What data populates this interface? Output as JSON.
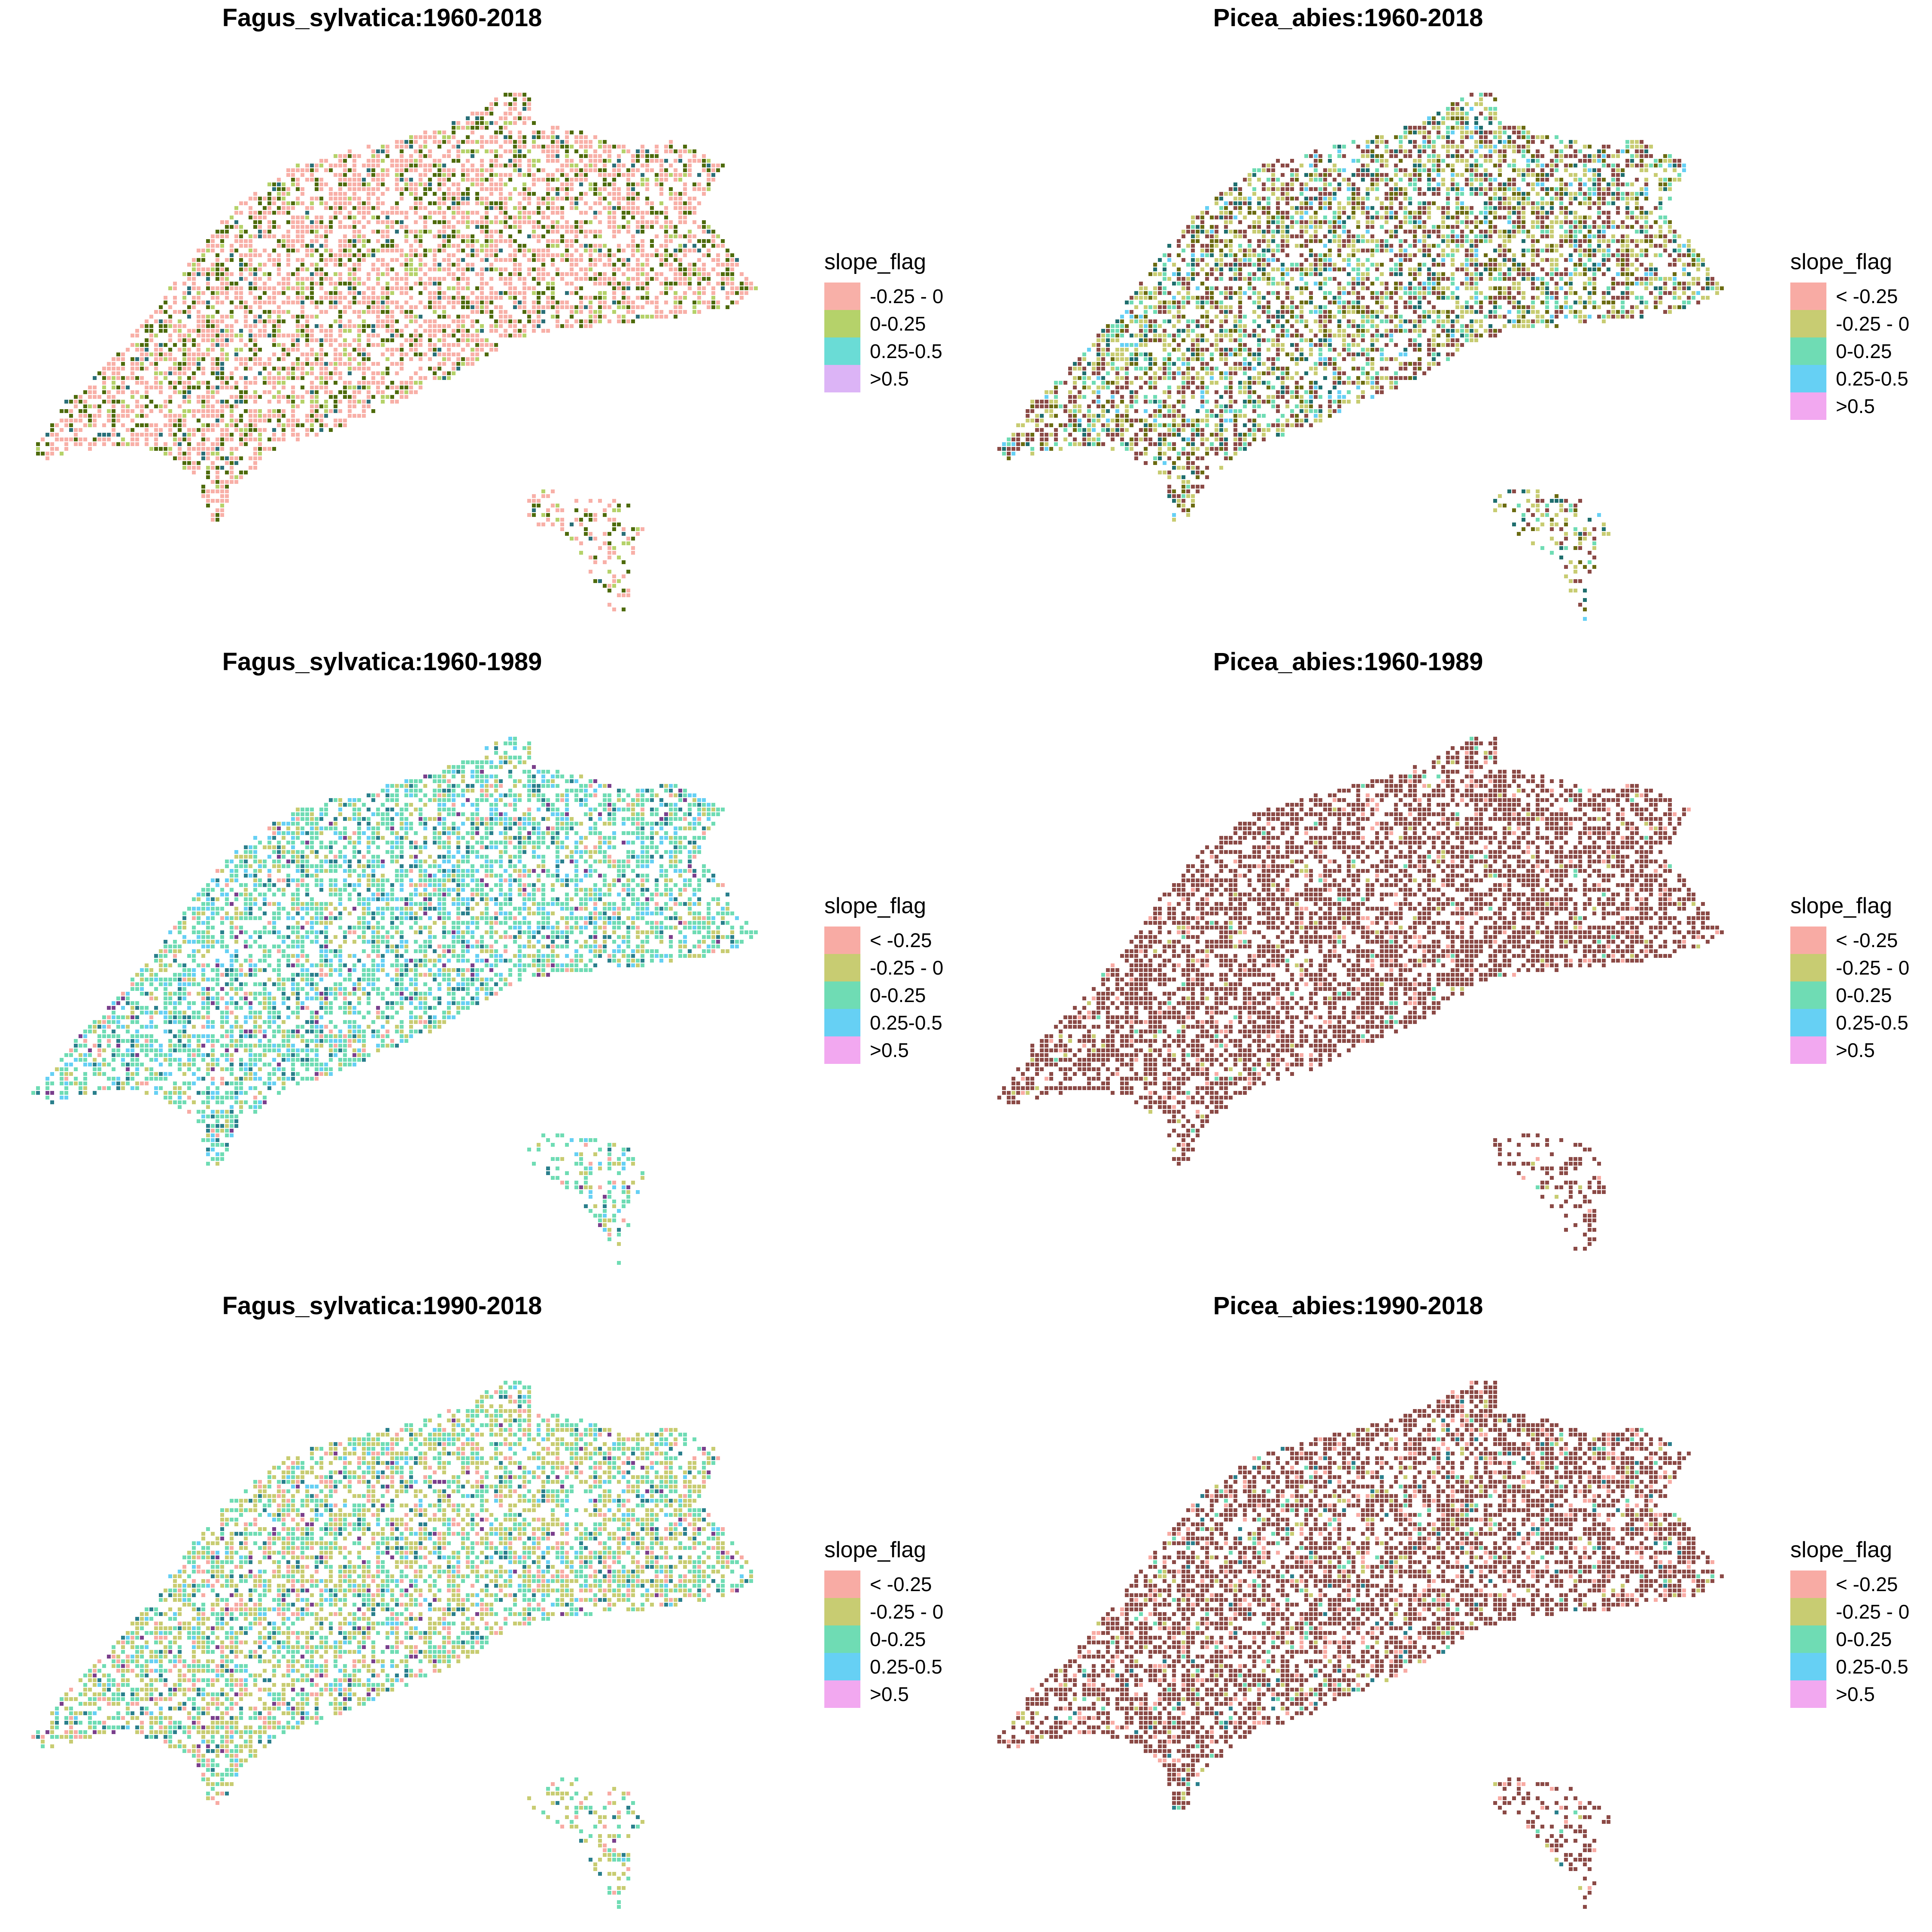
{
  "panels": [
    {
      "id": "fagus-1960-2018",
      "title": "Fagus_sylvatica:1960-2018",
      "legend_title": "slope_flag",
      "legend": [
        {
          "label": "-0.25 - 0",
          "color": "#f8b0a8"
        },
        {
          "label": "0-0.25",
          "color": "#b5d26a"
        },
        {
          "label": "0.25-0.5",
          "color": "#6adcd6"
        },
        {
          "label": ">0.5",
          "color": "#dcb4f6"
        }
      ],
      "map_palette": [
        "#f8b0a8",
        "#4e6b0c",
        "#b5d26a",
        "#2a6f78"
      ],
      "cell_weights": [
        0.62,
        0.22,
        0.11,
        0.05
      ]
    },
    {
      "id": "picea-1960-2018",
      "title": "Picea_abies:1960-2018",
      "legend_title": "slope_flag",
      "legend": [
        {
          "label": "< -0.25",
          "color": "#f8aba4"
        },
        {
          "label": "-0.25 - 0",
          "color": "#c8cc72"
        },
        {
          "label": "0-0.25",
          "color": "#6fdcb4"
        },
        {
          "label": "0.25-0.5",
          "color": "#66d0f4"
        },
        {
          "label": ">0.5",
          "color": "#f2a8f0"
        }
      ],
      "map_palette": [
        "#8b4a46",
        "#c8cc72",
        "#6b6b12",
        "#6fdcb4",
        "#1f6e6e",
        "#66d0f4"
      ],
      "cell_weights": [
        0.32,
        0.28,
        0.12,
        0.14,
        0.09,
        0.05
      ]
    },
    {
      "id": "fagus-1960-1989",
      "title": "Fagus_sylvatica:1960-1989",
      "legend_title": "slope_flag",
      "legend": [
        {
          "label": "< -0.25",
          "color": "#f8aba4"
        },
        {
          "label": "-0.25 - 0",
          "color": "#c8cc72"
        },
        {
          "label": "0-0.25",
          "color": "#6fdcb4"
        },
        {
          "label": "0.25-0.5",
          "color": "#66d0f4"
        },
        {
          "label": ">0.5",
          "color": "#f2a8f0"
        }
      ],
      "map_palette": [
        "#6fdcb4",
        "#66d0f4",
        "#c8cc72",
        "#2a7f8c",
        "#f8aba4",
        "#7a3f8c"
      ],
      "cell_weights": [
        0.5,
        0.16,
        0.16,
        0.1,
        0.05,
        0.03
      ]
    },
    {
      "id": "picea-1960-1989",
      "title": "Picea_abies:1960-1989",
      "legend_title": "slope_flag",
      "legend": [
        {
          "label": "< -0.25",
          "color": "#f8aba4"
        },
        {
          "label": "-0.25 - 0",
          "color": "#c8cc72"
        },
        {
          "label": "0-0.25",
          "color": "#6fdcb4"
        },
        {
          "label": "0.25-0.5",
          "color": "#66d0f4"
        },
        {
          "label": ">0.5",
          "color": "#f2a8f0"
        }
      ],
      "map_palette": [
        "#8b4a46",
        "#f8aba4",
        "#c8cc72",
        "#6fdcb4"
      ],
      "cell_weights": [
        0.9,
        0.05,
        0.03,
        0.02
      ]
    },
    {
      "id": "fagus-1990-2018",
      "title": "Fagus_sylvatica:1990-2018",
      "legend_title": "slope_flag",
      "legend": [
        {
          "label": "< -0.25",
          "color": "#f8aba4"
        },
        {
          "label": "-0.25 - 0",
          "color": "#c8cc72"
        },
        {
          "label": "0-0.25",
          "color": "#6fdcb4"
        },
        {
          "label": "0.25-0.5",
          "color": "#66d0f4"
        },
        {
          "label": ">0.5",
          "color": "#f2a8f0"
        }
      ],
      "map_palette": [
        "#c8cc72",
        "#6fdcb4",
        "#f8aba4",
        "#2a7f8c",
        "#66d0f4",
        "#7a3f8c"
      ],
      "cell_weights": [
        0.4,
        0.32,
        0.12,
        0.08,
        0.05,
        0.03
      ]
    },
    {
      "id": "picea-1990-2018",
      "title": "Picea_abies:1990-2018",
      "legend_title": "slope_flag",
      "legend": [
        {
          "label": "< -0.25",
          "color": "#f8aba4"
        },
        {
          "label": "-0.25 - 0",
          "color": "#c8cc72"
        },
        {
          "label": "0-0.25",
          "color": "#6fdcb4"
        },
        {
          "label": "0.25-0.5",
          "color": "#66d0f4"
        },
        {
          "label": ">0.5",
          "color": "#f2a8f0"
        }
      ],
      "map_palette": [
        "#8b4a46",
        "#f8aba4",
        "#c8cc72",
        "#6fdcb4",
        "#2a7f8c"
      ],
      "cell_weights": [
        0.78,
        0.1,
        0.05,
        0.04,
        0.03
      ]
    }
  ]
}
